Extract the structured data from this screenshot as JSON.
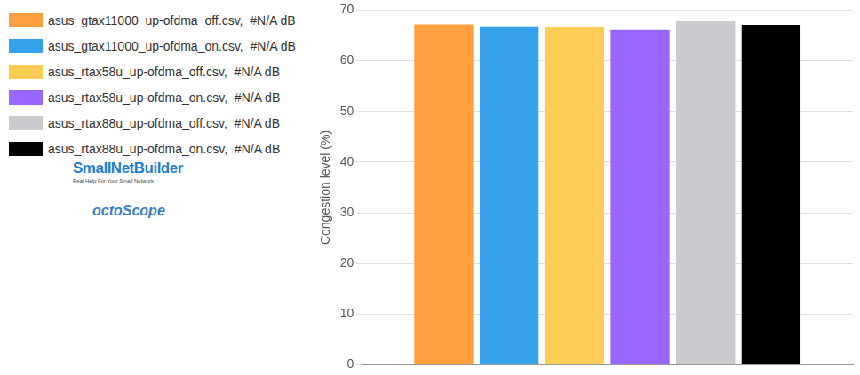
{
  "chart_data": {
    "type": "bar",
    "y_label": "Congestion level (%)",
    "categories": [
      null
    ],
    "series": [
      {
        "name": "asus_gtax11000_up-ofdma_off.csv,  #N/A dB",
        "color": "#ff9f40",
        "values": [
          67.2
        ]
      },
      {
        "name": "asus_gtax11000_up-ofdma_on.csv,  #N/A dB",
        "color": "#36a2eb",
        "values": [
          66.8
        ]
      },
      {
        "name": "asus_rtax58u_up-ofdma_off.csv,  #N/A dB",
        "color": "#ffcd56",
        "values": [
          66.6
        ]
      },
      {
        "name": "asus_rtax58u_up-ofdma_on.csv,  #N/A dB",
        "color": "#9966ff",
        "values": [
          66.1
        ]
      },
      {
        "name": "asus_rtax88u_up-ofdma_off.csv,  #N/A dB",
        "color": "#c9cbcf",
        "values": [
          67.8
        ]
      },
      {
        "name": "asus_rtax88u_up-ofdma_on.csv,  #N/A dB",
        "color": "#000000",
        "values": [
          67.1
        ]
      }
    ],
    "annotations": [
      "SmallNetBuilder",
      "Real Help For Your Small Network",
      "octoScope"
    ],
    "ylim": [
      0,
      70
    ],
    "yticks": [
      0,
      10,
      20,
      30,
      40,
      50,
      60,
      70
    ],
    "grid": true,
    "legend": "upper left",
    "tick_labels": "y"
  }
}
